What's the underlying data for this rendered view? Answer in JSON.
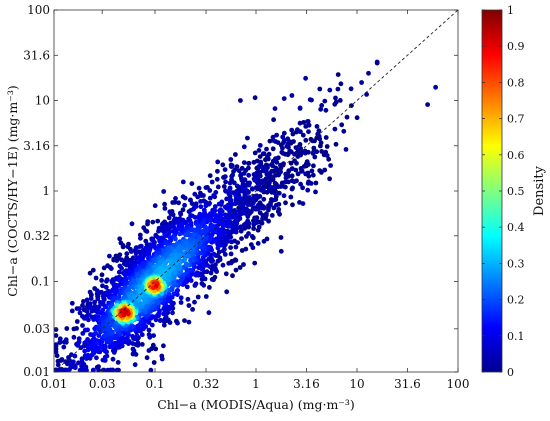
{
  "chart_data": {
    "type": "scatter",
    "title": "",
    "xlabel": "Chl−a (MODIS/Aqua) (mg·m⁻³)",
    "ylabel": "Chl−a (COCTS/HY−1E) (mg·m⁻³)",
    "xscale": "log",
    "yscale": "log",
    "xlim": [
      0.01,
      100
    ],
    "ylim": [
      0.01,
      100
    ],
    "xticks": [
      0.01,
      0.03,
      0.1,
      0.32,
      1,
      3.16,
      10,
      31.6,
      100
    ],
    "xtick_labels": [
      "0.01",
      "0.03",
      "0.1",
      "0.32",
      "1",
      "3.16",
      "10",
      "31.6",
      "100"
    ],
    "yticks": [
      0.01,
      0.03,
      0.1,
      0.32,
      1,
      3.16,
      10,
      31.6,
      100
    ],
    "ytick_labels": [
      "0.01",
      "0.03",
      "0.1",
      "0.32",
      "1",
      "3.16",
      "10",
      "31.6",
      "100"
    ],
    "reference_line": {
      "style": "dashed",
      "description": "1:1 line",
      "x": [
        0.01,
        100
      ],
      "y": [
        0.01,
        100
      ]
    },
    "colorbar": {
      "label": "Density",
      "range": [
        0,
        1
      ],
      "ticks": [
        0,
        0.1,
        0.2,
        0.3,
        0.4,
        0.5,
        0.6,
        0.7,
        0.8,
        0.9,
        1
      ],
      "tick_labels": [
        "0",
        "0.1",
        "0.2",
        "0.3",
        "0.4",
        "0.5",
        "0.6",
        "0.7",
        "0.8",
        "0.9",
        "1"
      ],
      "colormap": "jet"
    },
    "density_peaks": [
      {
        "x": 0.05,
        "y": 0.045,
        "density": 0.95
      },
      {
        "x": 0.1,
        "y": 0.09,
        "density": 0.9
      }
    ],
    "outliers": [
      {
        "x": 13,
        "y": 20
      },
      {
        "x": 60,
        "y": 14
      },
      {
        "x": 1.9,
        "y": 10.5
      },
      {
        "x": 0.7,
        "y": 10
      },
      {
        "x": 50,
        "y": 9
      }
    ],
    "grid": false
  }
}
